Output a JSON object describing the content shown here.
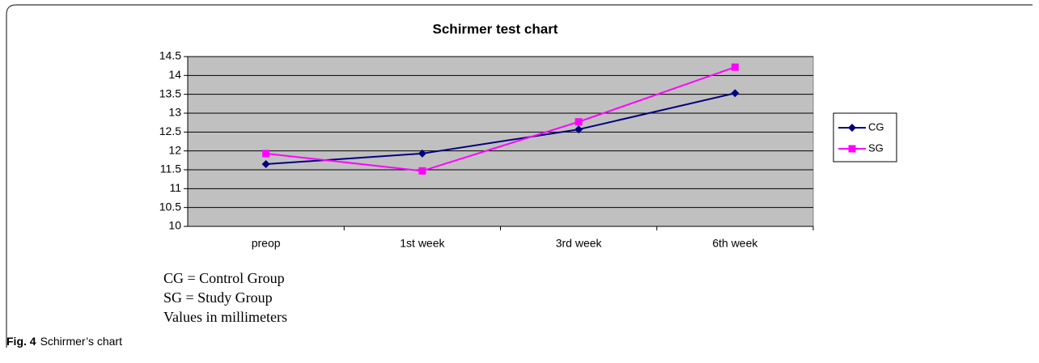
{
  "chart_data": {
    "type": "line",
    "title": "Schirmer test chart",
    "categories": [
      "preop",
      "1st week",
      "3rd week",
      "6th week"
    ],
    "series": [
      {
        "name": "CG",
        "color": "#000080",
        "marker": "diamond",
        "values": [
          11.65,
          11.93,
          12.57,
          13.53
        ]
      },
      {
        "name": "SG",
        "color": "#ff00ff",
        "marker": "square",
        "values": [
          11.93,
          11.47,
          12.77,
          14.22
        ]
      }
    ],
    "ylim": [
      10,
      14.5
    ],
    "yticks": [
      10,
      10.5,
      11,
      11.5,
      12,
      12.5,
      13,
      13.5,
      14,
      14.5
    ],
    "grid": true,
    "legend": "right",
    "notes": [
      "CG = Control Group",
      "SG = Study Group",
      "Values in millimeters"
    ]
  },
  "caption": {
    "label": "Fig. 4",
    "text": "Schirmer’s chart"
  }
}
